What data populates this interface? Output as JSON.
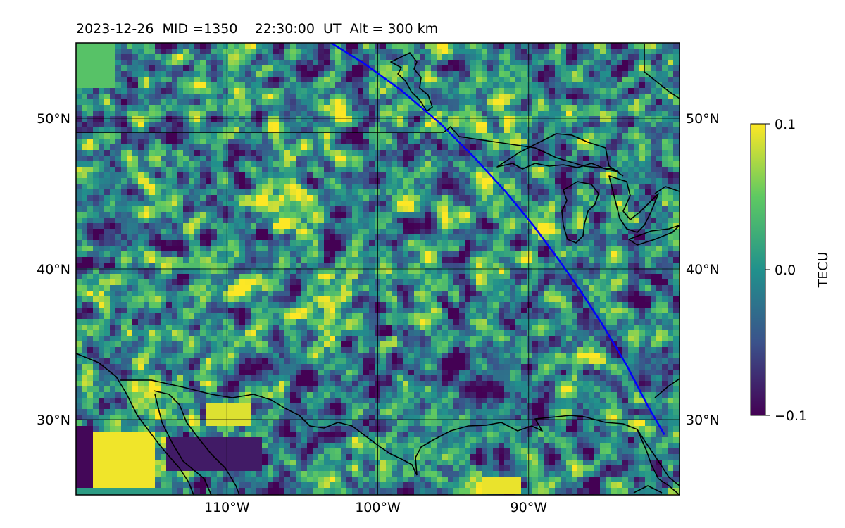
{
  "title": "2023-12-26  MID =1350    22:30:00  UT  Alt = 300 km",
  "map": {
    "lon_range": [
      -120,
      -80
    ],
    "lat_range": [
      25,
      55
    ],
    "lon_ticks": [
      {
        "value": -110,
        "label": "110°W"
      },
      {
        "value": -100,
        "label": "100°W"
      },
      {
        "value": -90,
        "label": "90°W"
      }
    ],
    "lat_ticks": [
      {
        "value": 30,
        "label": "30°N"
      },
      {
        "value": 40,
        "label": "40°N"
      },
      {
        "value": 50,
        "label": "50°N"
      }
    ],
    "grid": true,
    "track_color": "#0000ff",
    "coast_color": "#000000",
    "track": [
      [
        -103.1,
        55.0
      ],
      [
        -101.0,
        53.7
      ],
      [
        -98.5,
        51.9
      ],
      [
        -95.8,
        49.6
      ],
      [
        -93.6,
        47.4
      ],
      [
        -91.5,
        45.1
      ],
      [
        -89.7,
        42.9
      ],
      [
        -88.0,
        40.6
      ],
      [
        -86.6,
        38.6
      ],
      [
        -85.1,
        36.3
      ],
      [
        -83.5,
        33.6
      ],
      [
        -82.1,
        30.9
      ],
      [
        -81.0,
        29.0
      ]
    ]
  },
  "colorbar": {
    "label": "TECU",
    "min": -0.1,
    "max": 0.1,
    "ticks": [
      {
        "value": 0.1,
        "label": "0.1"
      },
      {
        "value": 0.0,
        "label": "0.0"
      },
      {
        "value": -0.1,
        "label": "−0.1"
      }
    ],
    "colormap": "viridis",
    "stops": [
      "#440154",
      "#3b528b",
      "#21918c",
      "#5ec962",
      "#fde725"
    ]
  }
}
